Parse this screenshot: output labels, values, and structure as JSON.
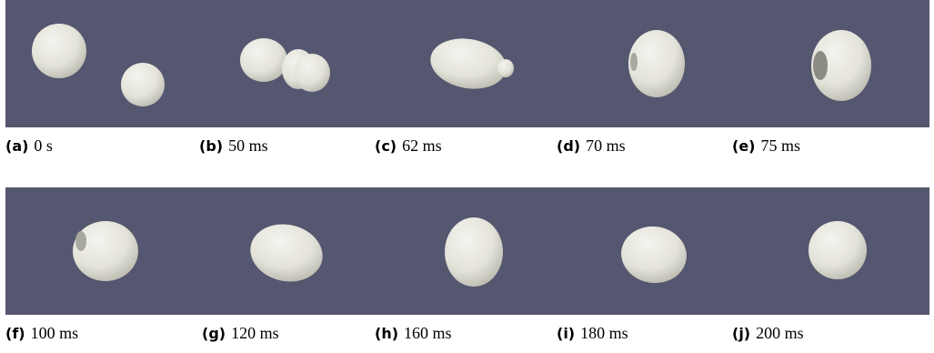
{
  "panels": [
    {
      "label": "(a)",
      "caption": "0 s"
    },
    {
      "label": "(b)",
      "caption": "50 ms"
    },
    {
      "label": "(c)",
      "caption": "62 ms"
    },
    {
      "label": "(d)",
      "caption": "70 ms"
    },
    {
      "label": "(e)",
      "caption": "75 ms"
    },
    {
      "label": "(f)",
      "caption": "100 ms"
    },
    {
      "label": "(g)",
      "caption": "120 ms"
    },
    {
      "label": "(h)",
      "caption": "160 ms"
    },
    {
      "label": "(i)",
      "caption": "180 ms"
    },
    {
      "label": "(j)",
      "caption": "200 ms"
    }
  ]
}
